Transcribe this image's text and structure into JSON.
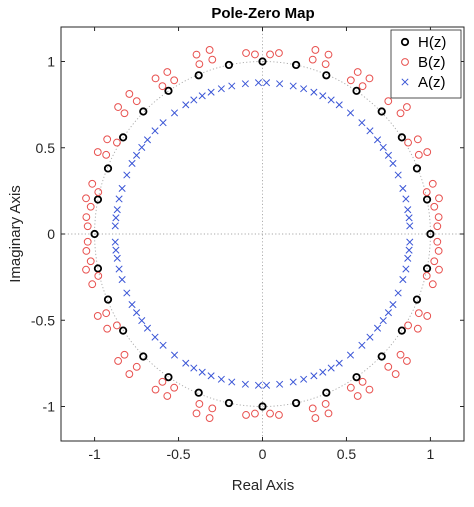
{
  "chart_data": {
    "type": "scatter",
    "title": "Pole-Zero Map",
    "xlabel": "Real Axis",
    "ylabel": "Imaginary Axis",
    "xlim": [
      -1.2,
      1.2
    ],
    "ylim": [
      -1.2,
      1.2
    ],
    "xticks": [
      "-1",
      "-0.5",
      "0",
      "0.5",
      "1"
    ],
    "yticks": [
      "-1",
      "-0.5",
      "0",
      "0.5",
      "1"
    ],
    "grid": "unit circle and axes (dotted)",
    "legend_position": "top-right",
    "series": [
      {
        "name": "H(z)",
        "marker": "circle",
        "color": "#000000",
        "points": [
          [
            1.0,
            0.0
          ],
          [
            0.98,
            0.2
          ],
          [
            0.92,
            0.38
          ],
          [
            0.83,
            0.56
          ],
          [
            0.71,
            0.71
          ],
          [
            0.56,
            0.83
          ],
          [
            0.38,
            0.92
          ],
          [
            0.2,
            0.98
          ],
          [
            0.0,
            1.0
          ],
          [
            -0.2,
            0.98
          ],
          [
            -0.38,
            0.92
          ],
          [
            -0.56,
            0.83
          ],
          [
            -0.71,
            0.71
          ],
          [
            -0.83,
            0.56
          ],
          [
            -0.92,
            0.38
          ],
          [
            -0.98,
            0.2
          ],
          [
            -1.0,
            0.0
          ],
          [
            -0.98,
            -0.2
          ],
          [
            -0.92,
            -0.38
          ],
          [
            -0.83,
            -0.56
          ],
          [
            -0.71,
            -0.71
          ],
          [
            -0.56,
            -0.83
          ],
          [
            -0.38,
            -0.92
          ],
          [
            -0.2,
            -0.98
          ],
          [
            0.0,
            -1.0
          ],
          [
            0.2,
            -0.98
          ],
          [
            0.38,
            -0.92
          ],
          [
            0.56,
            -0.83
          ],
          [
            0.71,
            -0.71
          ],
          [
            0.83,
            -0.56
          ],
          [
            0.92,
            -0.38
          ],
          [
            0.98,
            -0.2
          ]
        ]
      },
      {
        "name": "B(z)",
        "marker": "circle",
        "color": "#e8514f",
        "points": [
          [
            1.041,
            -0.045
          ],
          [
            1.041,
            0.045
          ],
          [
            1.049,
            -0.098
          ],
          [
            1.049,
            0.098
          ],
          [
            1.023,
            0.158
          ],
          [
            0.978,
            0.243
          ],
          [
            1.051,
            0.207
          ],
          [
            1.014,
            0.291
          ],
          [
            0.931,
            0.459
          ],
          [
            0.867,
            0.53
          ],
          [
            0.981,
            0.475
          ],
          [
            0.925,
            0.549
          ],
          [
            0.822,
            0.7
          ],
          [
            0.749,
            0.77
          ],
          [
            0.86,
            0.736
          ],
          [
            0.793,
            0.812
          ],
          [
            0.596,
            0.857
          ],
          [
            0.526,
            0.891
          ],
          [
            0.637,
            0.902
          ],
          [
            0.567,
            0.939
          ],
          [
            0.376,
            0.985
          ],
          [
            0.299,
            1.011
          ],
          [
            0.393,
            1.04
          ],
          [
            0.315,
            1.067
          ],
          [
            0.045,
            1.041
          ],
          [
            -0.045,
            1.041
          ],
          [
            0.098,
            1.049
          ],
          [
            -0.098,
            1.049
          ],
          [
            -0.299,
            1.011
          ],
          [
            -0.376,
            0.985
          ],
          [
            -0.315,
            1.067
          ],
          [
            -0.393,
            1.04
          ],
          [
            -0.526,
            0.891
          ],
          [
            -0.596,
            0.857
          ],
          [
            -0.567,
            0.939
          ],
          [
            -0.637,
            0.902
          ],
          [
            -0.749,
            0.77
          ],
          [
            -0.822,
            0.7
          ],
          [
            -0.793,
            0.812
          ],
          [
            -0.86,
            0.736
          ],
          [
            -0.867,
            0.53
          ],
          [
            -0.931,
            0.459
          ],
          [
            -0.925,
            0.549
          ],
          [
            -0.981,
            0.475
          ],
          [
            -0.978,
            0.243
          ],
          [
            -1.023,
            0.158
          ],
          [
            -1.014,
            0.291
          ],
          [
            -1.051,
            0.207
          ],
          [
            -1.041,
            0.045
          ],
          [
            -1.041,
            -0.045
          ],
          [
            -1.049,
            0.098
          ],
          [
            -1.049,
            -0.098
          ],
          [
            -1.023,
            -0.158
          ],
          [
            -0.978,
            -0.243
          ],
          [
            -1.051,
            -0.207
          ],
          [
            -1.014,
            -0.291
          ],
          [
            -0.931,
            -0.459
          ],
          [
            -0.867,
            -0.53
          ],
          [
            -0.981,
            -0.475
          ],
          [
            -0.925,
            -0.549
          ],
          [
            -0.822,
            -0.7
          ],
          [
            -0.749,
            -0.77
          ],
          [
            -0.86,
            -0.736
          ],
          [
            -0.793,
            -0.812
          ],
          [
            -0.596,
            -0.857
          ],
          [
            -0.526,
            -0.891
          ],
          [
            -0.637,
            -0.902
          ],
          [
            -0.567,
            -0.939
          ],
          [
            -0.376,
            -0.985
          ],
          [
            -0.299,
            -1.011
          ],
          [
            -0.393,
            -1.04
          ],
          [
            -0.315,
            -1.067
          ],
          [
            -0.045,
            -1.041
          ],
          [
            0.045,
            -1.041
          ],
          [
            -0.098,
            -1.049
          ],
          [
            0.098,
            -1.049
          ],
          [
            0.299,
            -1.011
          ],
          [
            0.376,
            -0.985
          ],
          [
            0.315,
            -1.067
          ],
          [
            0.393,
            -1.04
          ],
          [
            0.526,
            -0.891
          ],
          [
            0.596,
            -0.857
          ],
          [
            0.567,
            -0.939
          ],
          [
            0.637,
            -0.902
          ],
          [
            0.749,
            -0.77
          ],
          [
            0.822,
            -0.7
          ],
          [
            0.793,
            -0.812
          ],
          [
            0.86,
            -0.736
          ],
          [
            0.867,
            -0.53
          ],
          [
            0.931,
            -0.459
          ],
          [
            0.925,
            -0.549
          ],
          [
            0.981,
            -0.475
          ],
          [
            0.978,
            -0.243
          ],
          [
            1.023,
            -0.158
          ],
          [
            1.014,
            -0.291
          ],
          [
            1.051,
            -0.207
          ]
        ]
      },
      {
        "name": "A(z)",
        "marker": "x",
        "color": "#3a55d6",
        "points": [
          [
            0.877,
            0.047
          ],
          [
            0.873,
            0.094
          ],
          [
            0.865,
            0.141
          ],
          [
            0.854,
            0.203
          ],
          [
            0.836,
            0.264
          ],
          [
            0.808,
            0.342
          ],
          [
            0.777,
            0.409
          ],
          [
            0.75,
            0.456
          ],
          [
            0.719,
            0.502
          ],
          [
            0.685,
            0.546
          ],
          [
            0.64,
            0.598
          ],
          [
            0.592,
            0.645
          ],
          [
            0.524,
            0.702
          ],
          [
            0.457,
            0.749
          ],
          [
            0.409,
            0.777
          ],
          [
            0.359,
            0.801
          ],
          [
            0.306,
            0.822
          ],
          [
            0.245,
            0.842
          ],
          [
            0.183,
            0.858
          ],
          [
            0.102,
            0.871
          ],
          [
            0.024,
            0.877
          ],
          [
            -0.024,
            0.877
          ],
          [
            -0.102,
            0.871
          ],
          [
            -0.183,
            0.858
          ],
          [
            -0.245,
            0.842
          ],
          [
            -0.306,
            0.822
          ],
          [
            -0.359,
            0.801
          ],
          [
            -0.409,
            0.777
          ],
          [
            -0.457,
            0.749
          ],
          [
            -0.524,
            0.702
          ],
          [
            -0.592,
            0.645
          ],
          [
            -0.64,
            0.598
          ],
          [
            -0.685,
            0.546
          ],
          [
            -0.719,
            0.502
          ],
          [
            -0.75,
            0.456
          ],
          [
            -0.777,
            0.409
          ],
          [
            -0.808,
            0.342
          ],
          [
            -0.836,
            0.264
          ],
          [
            -0.854,
            0.203
          ],
          [
            -0.865,
            0.141
          ],
          [
            -0.873,
            0.094
          ],
          [
            -0.877,
            0.047
          ],
          [
            -0.877,
            -0.047
          ],
          [
            -0.873,
            -0.094
          ],
          [
            -0.865,
            -0.141
          ],
          [
            -0.854,
            -0.203
          ],
          [
            -0.836,
            -0.264
          ],
          [
            -0.808,
            -0.342
          ],
          [
            -0.777,
            -0.409
          ],
          [
            -0.75,
            -0.456
          ],
          [
            -0.719,
            -0.502
          ],
          [
            -0.685,
            -0.546
          ],
          [
            -0.64,
            -0.598
          ],
          [
            -0.592,
            -0.645
          ],
          [
            -0.524,
            -0.702
          ],
          [
            -0.457,
            -0.749
          ],
          [
            -0.409,
            -0.777
          ],
          [
            -0.359,
            -0.801
          ],
          [
            -0.306,
            -0.822
          ],
          [
            -0.245,
            -0.842
          ],
          [
            -0.183,
            -0.858
          ],
          [
            -0.102,
            -0.871
          ],
          [
            -0.024,
            -0.877
          ],
          [
            0.024,
            -0.877
          ],
          [
            0.102,
            -0.871
          ],
          [
            0.183,
            -0.858
          ],
          [
            0.245,
            -0.842
          ],
          [
            0.306,
            -0.822
          ],
          [
            0.359,
            -0.801
          ],
          [
            0.409,
            -0.777
          ],
          [
            0.457,
            -0.749
          ],
          [
            0.524,
            -0.702
          ],
          [
            0.592,
            -0.645
          ],
          [
            0.64,
            -0.598
          ],
          [
            0.685,
            -0.546
          ],
          [
            0.719,
            -0.502
          ],
          [
            0.75,
            -0.456
          ],
          [
            0.777,
            -0.409
          ],
          [
            0.808,
            -0.342
          ],
          [
            0.836,
            -0.264
          ],
          [
            0.854,
            -0.203
          ],
          [
            0.865,
            -0.141
          ],
          [
            0.873,
            -0.094
          ],
          [
            0.877,
            -0.047
          ]
        ]
      }
    ]
  }
}
